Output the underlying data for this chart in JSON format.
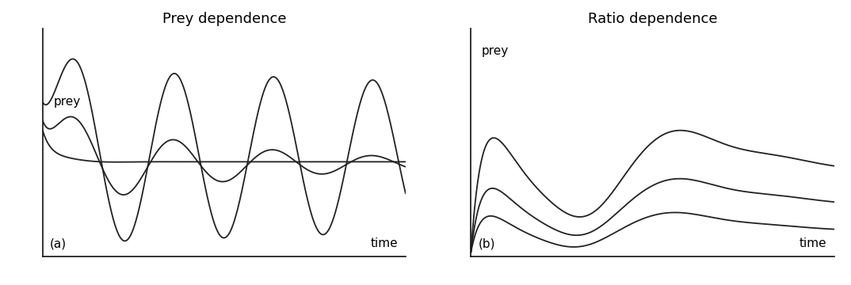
{
  "title_a": "Prey dependence",
  "title_b": "Ratio dependence",
  "label_a": "(a)",
  "label_b": "(b)",
  "xlabel": "time",
  "ylabel_a": "prey",
  "ylabel_b": "prey",
  "bg_color": "#ffffff",
  "line_color": "#222222",
  "font_family": "monospace",
  "title_fontsize": 13,
  "label_fontsize": 11,
  "axis_label_fontsize": 11
}
